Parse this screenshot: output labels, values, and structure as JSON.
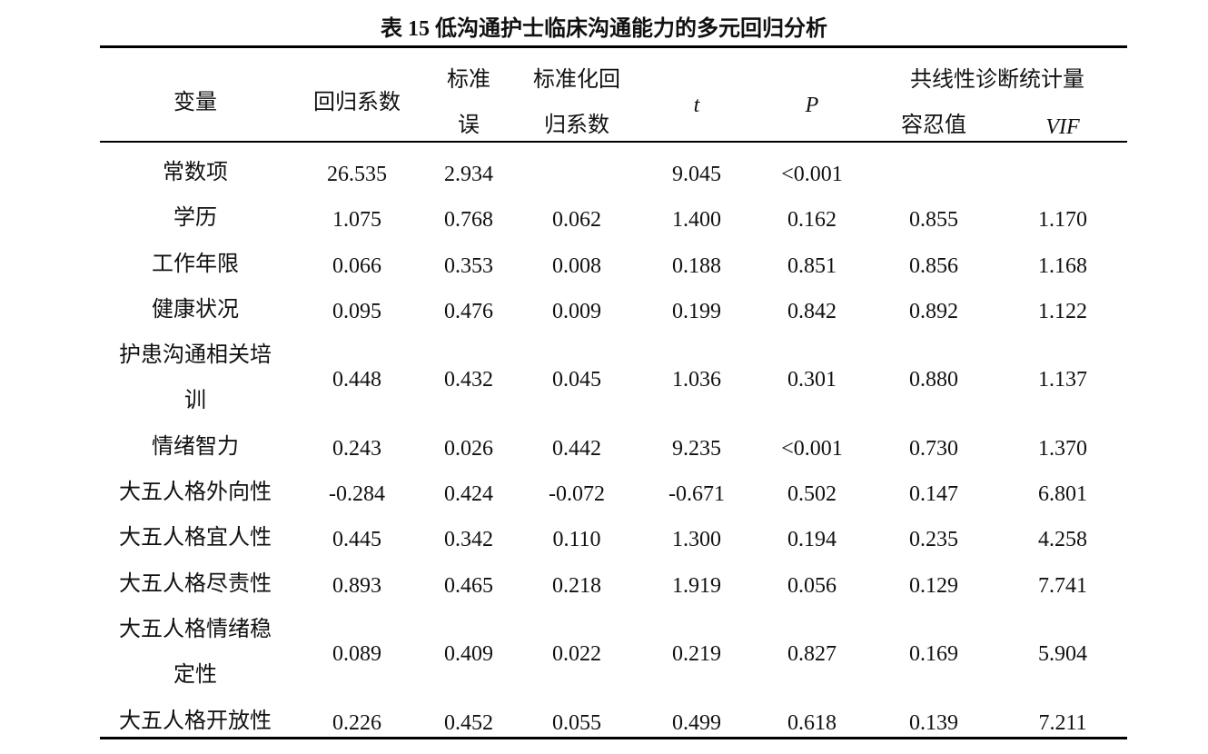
{
  "title": "表 15 低沟通护士临床沟通能力的多元回归分析",
  "table": {
    "header": {
      "variable": "变量",
      "coef": "回归系数",
      "se": "标准误",
      "std_coef": "标准化回归系数",
      "t": "t",
      "p": "P",
      "collinearity": "共线性诊断统计量",
      "tolerance": "容忍值",
      "vif": "VIF"
    },
    "rows": [
      [
        "常数项",
        "26.535",
        "2.934",
        null,
        "9.045",
        "<0.001",
        null,
        null
      ],
      [
        "学历",
        "1.075",
        "0.768",
        "0.062",
        "1.400",
        "0.162",
        "0.855",
        "1.170"
      ],
      [
        "工作年限",
        "0.066",
        "0.353",
        "0.008",
        "0.188",
        "0.851",
        "0.856",
        "1.168"
      ],
      [
        "健康状况",
        "0.095",
        "0.476",
        "0.009",
        "0.199",
        "0.842",
        "0.892",
        "1.122"
      ],
      [
        "护患沟通相关培训",
        "0.448",
        "0.432",
        "0.045",
        "1.036",
        "0.301",
        "0.880",
        "1.137"
      ],
      [
        "情绪智力",
        "0.243",
        "0.026",
        "0.442",
        "9.235",
        "<0.001",
        "0.730",
        "1.370"
      ],
      [
        "大五人格外向性",
        "-0.284",
        "0.424",
        "-0.072",
        "-0.671",
        "0.502",
        "0.147",
        "6.801"
      ],
      [
        "大五人格宜人性",
        "0.445",
        "0.342",
        "0.110",
        "1.300",
        "0.194",
        "0.235",
        "4.258"
      ],
      [
        "大五人格尽责性",
        "0.893",
        "0.465",
        "0.218",
        "1.919",
        "0.056",
        "0.129",
        "7.741"
      ],
      [
        "大五人格情绪稳定性",
        "0.089",
        "0.409",
        "0.022",
        "0.219",
        "0.827",
        "0.169",
        "5.904"
      ],
      [
        "大五人格开放性",
        "0.226",
        "0.452",
        "0.055",
        "0.499",
        "0.618",
        "0.139",
        "7.211"
      ]
    ]
  }
}
